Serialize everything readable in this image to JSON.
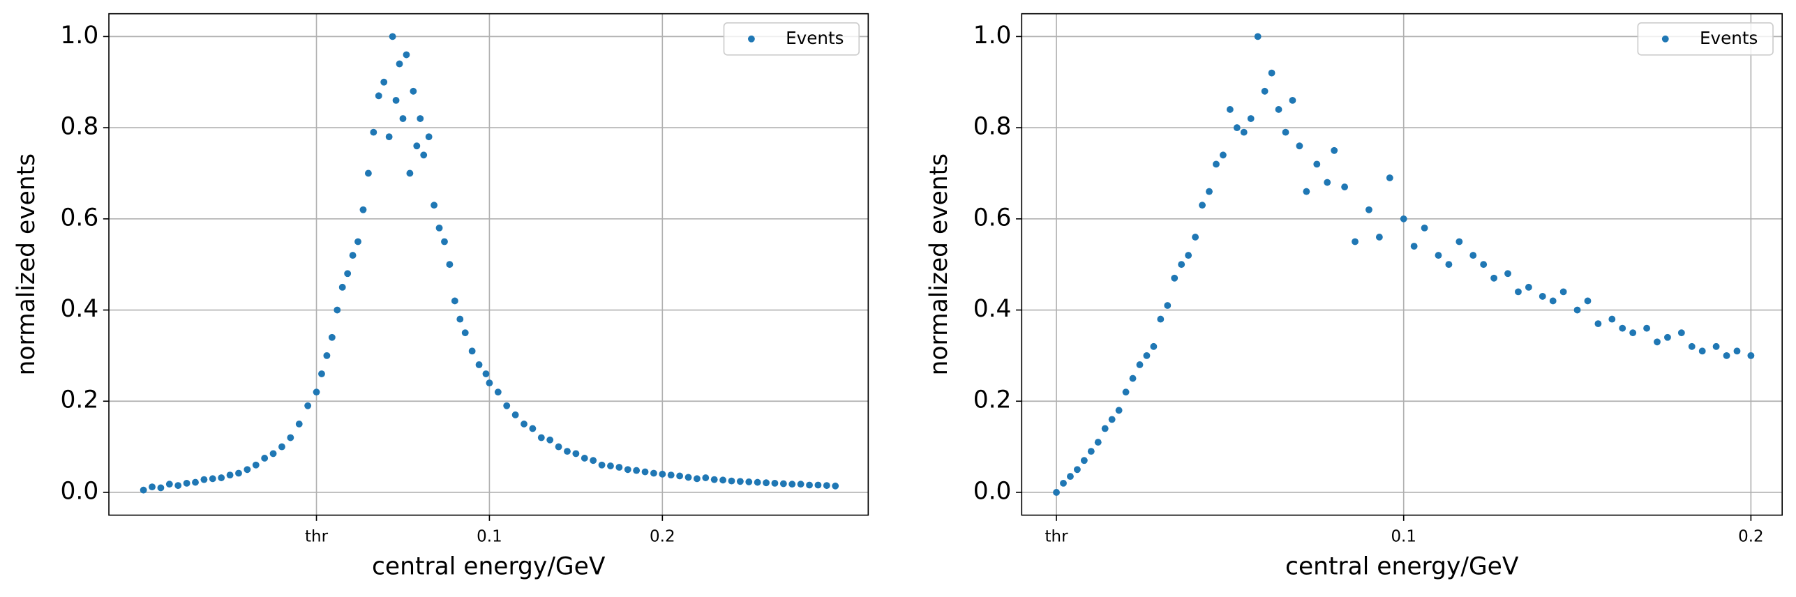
{
  "chart_data": [
    {
      "type": "scatter",
      "xlabel": "central energy/GeV",
      "ylabel": "normalized events",
      "x": [
        -0.1,
        -0.095,
        -0.09,
        -0.085,
        -0.08,
        -0.075,
        -0.07,
        -0.065,
        -0.06,
        -0.055,
        -0.05,
        -0.045,
        -0.04,
        -0.035,
        -0.03,
        -0.025,
        -0.02,
        -0.015,
        -0.01,
        -0.005,
        0.0,
        0.003,
        0.006,
        0.009,
        0.012,
        0.015,
        0.018,
        0.021,
        0.024,
        0.027,
        0.03,
        0.033,
        0.036,
        0.039,
        0.042,
        0.044,
        0.046,
        0.048,
        0.05,
        0.052,
        0.054,
        0.056,
        0.058,
        0.06,
        0.062,
        0.065,
        0.068,
        0.071,
        0.074,
        0.077,
        0.08,
        0.083,
        0.086,
        0.09,
        0.094,
        0.098,
        0.1,
        0.105,
        0.11,
        0.115,
        0.12,
        0.125,
        0.13,
        0.135,
        0.14,
        0.145,
        0.15,
        0.155,
        0.16,
        0.165,
        0.17,
        0.175,
        0.18,
        0.185,
        0.19,
        0.195,
        0.2,
        0.205,
        0.21,
        0.215,
        0.22,
        0.225,
        0.23,
        0.235,
        0.24,
        0.245,
        0.25,
        0.255,
        0.26,
        0.265,
        0.27,
        0.275,
        0.28,
        0.285,
        0.29,
        0.295,
        0.3
      ],
      "series": [
        {
          "name": "Events",
          "color": "#1f77b4",
          "values": [
            0.005,
            0.012,
            0.01,
            0.018,
            0.015,
            0.02,
            0.022,
            0.028,
            0.03,
            0.032,
            0.038,
            0.042,
            0.05,
            0.06,
            0.075,
            0.085,
            0.1,
            0.12,
            0.15,
            0.19,
            0.22,
            0.26,
            0.3,
            0.34,
            0.4,
            0.45,
            0.48,
            0.52,
            0.55,
            0.62,
            0.7,
            0.79,
            0.87,
            0.9,
            0.78,
            1.0,
            0.86,
            0.94,
            0.82,
            0.96,
            0.7,
            0.88,
            0.76,
            0.82,
            0.74,
            0.78,
            0.63,
            0.58,
            0.55,
            0.5,
            0.42,
            0.38,
            0.35,
            0.31,
            0.28,
            0.26,
            0.24,
            0.22,
            0.19,
            0.17,
            0.15,
            0.14,
            0.12,
            0.115,
            0.1,
            0.09,
            0.085,
            0.075,
            0.07,
            0.06,
            0.058,
            0.055,
            0.05,
            0.048,
            0.045,
            0.042,
            0.04,
            0.038,
            0.036,
            0.033,
            0.03,
            0.032,
            0.028,
            0.027,
            0.025,
            0.024,
            0.023,
            0.022,
            0.021,
            0.02,
            0.019,
            0.018,
            0.018,
            0.016,
            0.016,
            0.015,
            0.014
          ]
        }
      ],
      "xlim": [
        -0.12,
        0.319
      ],
      "ylim": [
        -0.05,
        1.05
      ],
      "xticks": [
        {
          "value": 0,
          "label": "thr"
        },
        0.1,
        0.2
      ],
      "yticks": [
        {
          "value": 0,
          "label": "0.0"
        },
        0.2,
        0.4,
        0.6,
        0.8,
        {
          "value": 1,
          "label": "1.0"
        }
      ],
      "grid": true,
      "legend": "upper right"
    },
    {
      "type": "scatter",
      "xlabel": "central energy/GeV",
      "ylabel": "normalized events",
      "x": [
        0.0,
        0.002,
        0.004,
        0.006,
        0.008,
        0.01,
        0.012,
        0.014,
        0.016,
        0.018,
        0.02,
        0.022,
        0.024,
        0.026,
        0.028,
        0.03,
        0.032,
        0.034,
        0.036,
        0.038,
        0.04,
        0.042,
        0.044,
        0.046,
        0.048,
        0.05,
        0.052,
        0.054,
        0.056,
        0.058,
        0.06,
        0.062,
        0.064,
        0.066,
        0.068,
        0.07,
        0.072,
        0.075,
        0.078,
        0.08,
        0.083,
        0.086,
        0.09,
        0.093,
        0.096,
        0.1,
        0.103,
        0.106,
        0.11,
        0.113,
        0.116,
        0.12,
        0.123,
        0.126,
        0.13,
        0.133,
        0.136,
        0.14,
        0.143,
        0.146,
        0.15,
        0.153,
        0.156,
        0.16,
        0.163,
        0.166,
        0.17,
        0.173,
        0.176,
        0.18,
        0.183,
        0.186,
        0.19,
        0.193,
        0.196,
        0.2
      ],
      "series": [
        {
          "name": "Events",
          "color": "#1f77b4",
          "values": [
            0.0,
            0.02,
            0.035,
            0.05,
            0.07,
            0.09,
            0.11,
            0.14,
            0.16,
            0.18,
            0.22,
            0.25,
            0.28,
            0.3,
            0.32,
            0.38,
            0.41,
            0.47,
            0.5,
            0.52,
            0.56,
            0.63,
            0.66,
            0.72,
            0.74,
            0.84,
            0.8,
            0.79,
            0.82,
            1.0,
            0.88,
            0.92,
            0.84,
            0.79,
            0.86,
            0.76,
            0.66,
            0.72,
            0.68,
            0.75,
            0.67,
            0.55,
            0.62,
            0.56,
            0.69,
            0.6,
            0.54,
            0.58,
            0.52,
            0.5,
            0.55,
            0.52,
            0.5,
            0.47,
            0.48,
            0.44,
            0.45,
            0.43,
            0.42,
            0.44,
            0.4,
            0.42,
            0.37,
            0.38,
            0.36,
            0.35,
            0.36,
            0.33,
            0.34,
            0.35,
            0.32,
            0.31,
            0.32,
            0.3,
            0.31,
            0.3
          ]
        }
      ],
      "xlim": [
        -0.01,
        0.209
      ],
      "ylim": [
        -0.05,
        1.05
      ],
      "xticks": [
        {
          "value": 0,
          "label": "thr"
        },
        0.1,
        0.2
      ],
      "yticks": [
        {
          "value": 0,
          "label": "0.0"
        },
        0.2,
        0.4,
        0.6,
        0.8,
        {
          "value": 1,
          "label": "1.0"
        }
      ],
      "grid": true,
      "legend": "upper right"
    }
  ]
}
